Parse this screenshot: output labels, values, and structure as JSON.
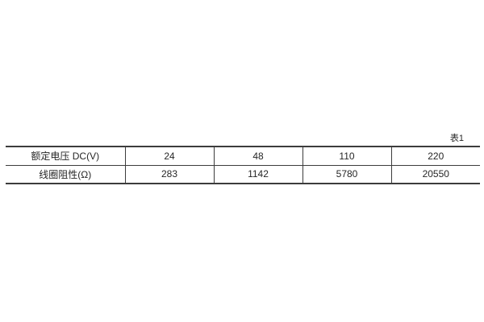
{
  "page": {
    "background": "#ffffff"
  },
  "table": {
    "caption": "表1",
    "border_color": "#3c3c3c",
    "text_color": "#262626",
    "rows": [
      {
        "label": "额定电压 DC(V)",
        "values": [
          "24",
          "48",
          "110",
          "220"
        ]
      },
      {
        "label": "线圈阻性(Ω)",
        "values": [
          "283",
          "1142",
          "5780",
          "20550"
        ]
      }
    ]
  }
}
